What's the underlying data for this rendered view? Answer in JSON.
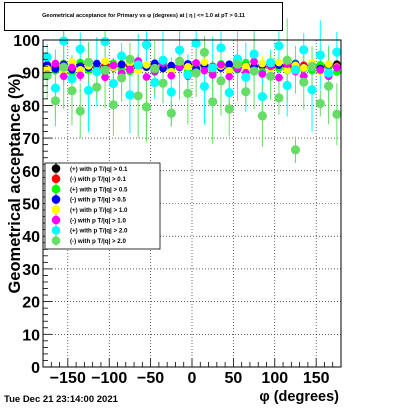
{
  "chart_data": {
    "type": "scatter",
    "title": "Geometrical acceptance for Primary vs φ (degrees) at | η | <= 1.0 at pT > 0.11",
    "xlabel": "φ (degrees)",
    "ylabel": "Geometrical acceptance (%)",
    "xlim": [
      -180,
      180
    ],
    "ylim": [
      0,
      100
    ],
    "x_ticks": [
      "−150",
      "−100",
      "−50",
      "0",
      "50",
      "100",
      "150"
    ],
    "x_tick_values": [
      -150,
      -100,
      -50,
      0,
      50,
      100,
      150
    ],
    "y_ticks": [
      "0",
      "10",
      "20",
      "30",
      "40",
      "50",
      "60",
      "70",
      "80",
      "90",
      "100"
    ],
    "y_tick_values": [
      0,
      10,
      20,
      30,
      40,
      50,
      60,
      70,
      80,
      90,
      100
    ],
    "grid": true,
    "legend_position": "middle-left",
    "series": [
      {
        "name": "(+) with p T/|q| > 0.1",
        "color": "#000000",
        "values": [
          92.4,
          91.6,
          92.1,
          91.2,
          92.5,
          91.7,
          91.9,
          92.3,
          91.5,
          92.6,
          92.1,
          91.4,
          92.0,
          92.7,
          91.3,
          92.2,
          91.8,
          92.5,
          91.1,
          92.3,
          91.9,
          92.6,
          91.5,
          92.1,
          92.4,
          91.7,
          92.0,
          91.3,
          92.5,
          91.9,
          92.2,
          91.6,
          92.4,
          91.8,
          92.1,
          92.6
        ]
      },
      {
        "name": "(-) with p T/|q| > 0.1",
        "color": "#ff0000",
        "values": [
          92.0,
          91.8,
          92.3,
          91.5,
          92.1,
          91.9,
          91.6,
          92.2,
          91.8,
          92.0,
          92.4,
          91.7,
          92.2,
          91.9,
          92.1,
          91.6,
          92.3,
          92.0,
          91.7,
          92.1,
          91.8,
          92.2,
          92.0,
          91.6,
          92.3,
          91.9,
          92.1,
          91.8,
          92.0,
          92.2,
          91.7,
          92.3,
          91.9,
          92.1,
          91.8,
          92.0
        ]
      },
      {
        "name": "(+) with p T/|q| > 0.5",
        "color": "#00ff00",
        "values": [
          91.5,
          90.6,
          92.8,
          89.9,
          93.1,
          90.8,
          92.2,
          90.1,
          92.9,
          91.0,
          90.4,
          93.2,
          91.6,
          90.2,
          92.6,
          91.1,
          93.0,
          90.5,
          92.3,
          91.7,
          90.0,
          92.7,
          91.3,
          90.9,
          93.1,
          91.9,
          90.3,
          92.5,
          91.4,
          90.7,
          92.9,
          91.2,
          90.6,
          92.4,
          91.8,
          90.2
        ]
      },
      {
        "name": "(-) with p T/|q| > 0.5",
        "color": "#0000ff",
        "values": [
          92.3,
          91.1,
          92.6,
          90.9,
          92.0,
          91.5,
          92.8,
          91.2,
          91.9,
          92.5,
          91.0,
          92.2,
          91.7,
          92.9,
          91.3,
          92.1,
          91.6,
          92.7,
          91.1,
          92.4,
          91.8,
          91.4,
          92.6,
          91.2,
          92.0,
          91.9,
          92.5,
          91.5,
          92.3,
          91.0,
          92.7,
          91.6,
          92.1,
          91.3,
          92.4,
          91.8
        ]
      },
      {
        "name": "(+) with p T/|q| > 1.0",
        "color": "#ffff00",
        "values": [
          91.2,
          92.9,
          90.4,
          93.3,
          90.9,
          92.1,
          90.2,
          93.5,
          91.6,
          89.9,
          93.0,
          90.7,
          92.4,
          91.0,
          93.6,
          90.3,
          92.7,
          91.8,
          90.1,
          93.2,
          91.3,
          92.0,
          90.6,
          93.4,
          91.9,
          90.5,
          92.8,
          91.1,
          93.1,
          90.8,
          92.3,
          91.5,
          93.0,
          90.4,
          92.6,
          91.7
        ]
      },
      {
        "name": "(-) with p T/|q| > 1.0",
        "color": "#ff00ff",
        "values": [
          89.5,
          92.8,
          88.9,
          91.6,
          89.2,
          93.3,
          90.1,
          88.6,
          92.2,
          89.8,
          91.0,
          93.6,
          88.7,
          90.4,
          92.9,
          89.1,
          91.8,
          88.9,
          93.0,
          90.6,
          89.3,
          92.4,
          88.8,
          91.3,
          90.0,
          93.4,
          89.6,
          91.9,
          88.5,
          92.6,
          90.3,
          89.0,
          92.0,
          90.8,
          88.9,
          91.5
        ]
      },
      {
        "name": "(+) with p T/|q| > 2.0",
        "color": "#00ffff",
        "values": [
          94.8,
          85.3,
          99.7,
          88.1,
          97.2,
          84.6,
          90.3,
          99.5,
          86.7,
          95.1,
          83.2,
          92.4,
          98.6,
          87.0,
          93.8,
          84.1,
          96.9,
          89.4,
          99.0,
          85.8,
          91.5,
          97.6,
          83.9,
          94.2,
          88.6,
          95.7,
          82.7,
          93.1,
          98.2,
          86.1,
          90.9,
          97.0,
          84.8,
          95.4,
          89.9,
          96.3
        ]
      },
      {
        "name": "(-) with p T/|q| > 2.0",
        "color": "#66dd66",
        "values": [
          89.1,
          81.4,
          91.7,
          84.5,
          78.3,
          93.2,
          85.6,
          90.8,
          80.2,
          88.4,
          94.1,
          82.9,
          79.5,
          91.3,
          86.8,
          77.6,
          93.5,
          83.7,
          89.9,
          96.2,
          81.1,
          87.5,
          78.9,
          92.6,
          84.2,
          90.5,
          76.8,
          88.9,
          82.3,
          93.8,
          66.4,
          87.1,
          91.9,
          80.6,
          85.9,
          77.3
        ]
      }
    ]
  },
  "footer": {
    "timestamp": "Tue Dec 21 23:14:00 2021"
  }
}
